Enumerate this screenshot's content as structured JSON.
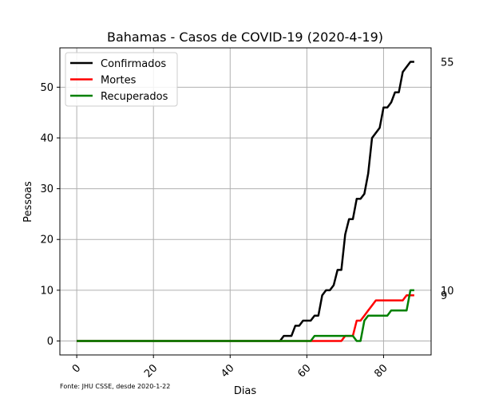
{
  "chart_data": {
    "type": "line",
    "title": "Bahamas - Casos de COVID-19 (2020-4-19)",
    "xlabel": "Dias",
    "ylabel": "Pessoas",
    "footnote": "Fonte: JHU CSSE, desde 2020-1-22",
    "xlim": [
      -4.4,
      92.4
    ],
    "ylim": [
      -2.75,
      57.75
    ],
    "xticks": [
      0,
      20,
      40,
      60,
      80
    ],
    "yticks": [
      0,
      10,
      20,
      30,
      40,
      50
    ],
    "grid": true,
    "legend_position": "upper-left",
    "end_labels": [
      {
        "series": "Confirmados",
        "text": "55",
        "value": 55
      },
      {
        "series": "Recuperados",
        "text": "10",
        "value": 10
      },
      {
        "series": "Mortes",
        "text": "9",
        "value": 9
      }
    ],
    "series": [
      {
        "name": "Confirmados",
        "color": "#000000",
        "x": [
          0,
          52,
          53,
          54,
          55,
          56,
          57,
          58,
          59,
          60,
          61,
          62,
          63,
          64,
          65,
          66,
          67,
          68,
          69,
          70,
          71,
          72,
          73,
          74,
          75,
          76,
          77,
          78,
          79,
          80,
          81,
          82,
          83,
          84,
          85,
          86,
          87,
          88
        ],
        "y": [
          0,
          0,
          0,
          1,
          1,
          1,
          3,
          3,
          4,
          4,
          4,
          5,
          5,
          9,
          10,
          10,
          11,
          14,
          14,
          21,
          24,
          24,
          28,
          28,
          29,
          33,
          40,
          41,
          42,
          46,
          46,
          47,
          49,
          49,
          53,
          54,
          55,
          55
        ]
      },
      {
        "name": "Mortes",
        "color": "#ff0000",
        "x": [
          0,
          68,
          69,
          70,
          71,
          72,
          73,
          74,
          75,
          76,
          77,
          78,
          79,
          80,
          81,
          82,
          83,
          84,
          85,
          86,
          87,
          88
        ],
        "y": [
          0,
          0,
          0,
          1,
          1,
          1,
          4,
          4,
          5,
          6,
          7,
          8,
          8,
          8,
          8,
          8,
          8,
          8,
          8,
          9,
          9,
          9
        ]
      },
      {
        "name": "Recuperados",
        "color": "#008000",
        "x": [
          0,
          61,
          62,
          63,
          64,
          65,
          66,
          67,
          68,
          69,
          70,
          71,
          72,
          73,
          74,
          75,
          76,
          77,
          78,
          79,
          80,
          81,
          82,
          83,
          84,
          85,
          86,
          87,
          88
        ],
        "y": [
          0,
          0,
          1,
          1,
          1,
          1,
          1,
          1,
          1,
          1,
          1,
          1,
          1,
          0,
          0,
          4,
          5,
          5,
          5,
          5,
          5,
          5,
          6,
          6,
          6,
          6,
          6,
          10,
          10
        ]
      }
    ]
  }
}
